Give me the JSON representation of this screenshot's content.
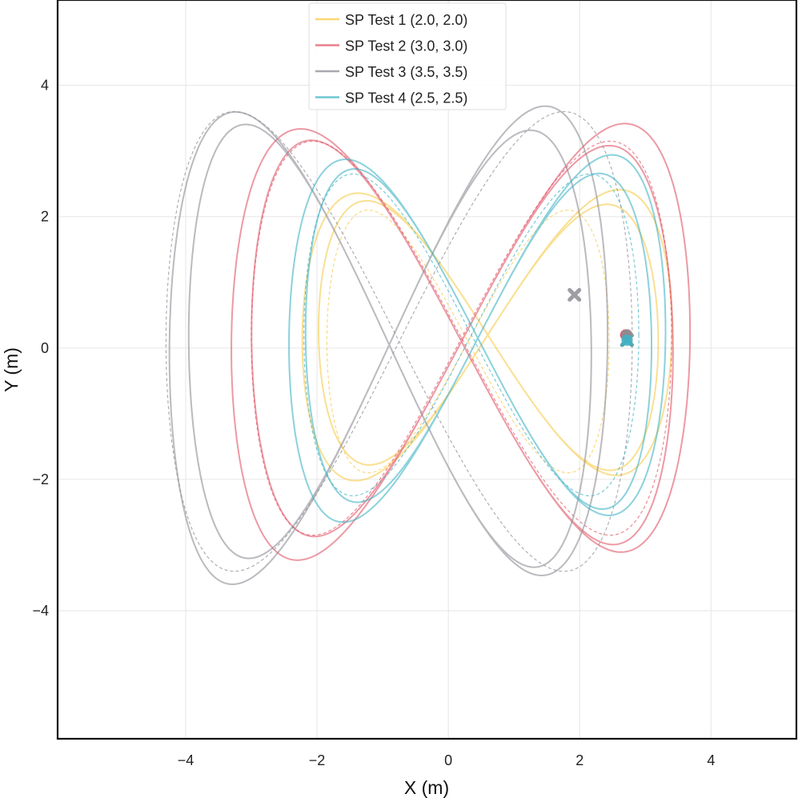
{
  "chart_data": {
    "type": "line",
    "title": "",
    "xlabel": "X (m)",
    "ylabel": "Y (m)",
    "xlim": [
      -5.95,
      5.3
    ],
    "ylim": [
      -5.95,
      5.3
    ],
    "xticks": [
      -4,
      -2,
      0,
      2,
      4
    ],
    "yticks": [
      -4,
      -2,
      0,
      2,
      4
    ],
    "xtick_labels": [
      "−4",
      "−2",
      "0",
      "2",
      "4"
    ],
    "ytick_labels": [
      "−4",
      "−2",
      "0",
      "2",
      "4"
    ],
    "grid": true,
    "legend_position": "top-center",
    "series": [
      {
        "name": "SP Test 1 (2.0, 2.0)",
        "color": "#f7c948",
        "reference": {
          "cx": 0.3,
          "cy": 0.1,
          "a": 2.15,
          "b": 2.0
        },
        "actual": {
          "cx": 0.6,
          "cy": 0.2,
          "a": 2.7,
          "b": 2.1
        },
        "start": [
          2.72,
          0.2
        ],
        "end": [
          2.72,
          0.12
        ]
      },
      {
        "name": "SP Test 2 (3.0, 3.0)",
        "color": "#e05567",
        "reference": {
          "cx": 0.2,
          "cy": 0.15,
          "a": 3.2,
          "b": 3.0
        },
        "actual": {
          "cx": 0.2,
          "cy": 0.1,
          "a": 3.35,
          "b": 3.15
        },
        "start": [
          2.7,
          0.2
        ],
        "end": [
          2.72,
          0.12
        ]
      },
      {
        "name": "SP Test 3 (3.5, 3.5)",
        "color": "#8c8c94",
        "reference": {
          "cx": -0.75,
          "cy": 0.1,
          "a": 3.55,
          "b": 3.5
        },
        "actual": {
          "cx": -0.9,
          "cy": 0.05,
          "a": 3.2,
          "b": 3.45
        },
        "start": [
          2.72,
          0.2
        ],
        "end": [
          1.92,
          0.81
        ]
      },
      {
        "name": "SP Test 4 (2.5, 2.5)",
        "color": "#3fb3c4",
        "reference": {
          "cx": 0.35,
          "cy": 0.2,
          "a": 2.55,
          "b": 2.45
        },
        "actual": {
          "cx": 0.45,
          "cy": 0.15,
          "a": 2.75,
          "b": 2.65
        },
        "start": [
          2.72,
          0.12
        ],
        "end": [
          2.72,
          0.12
        ]
      }
    ]
  }
}
